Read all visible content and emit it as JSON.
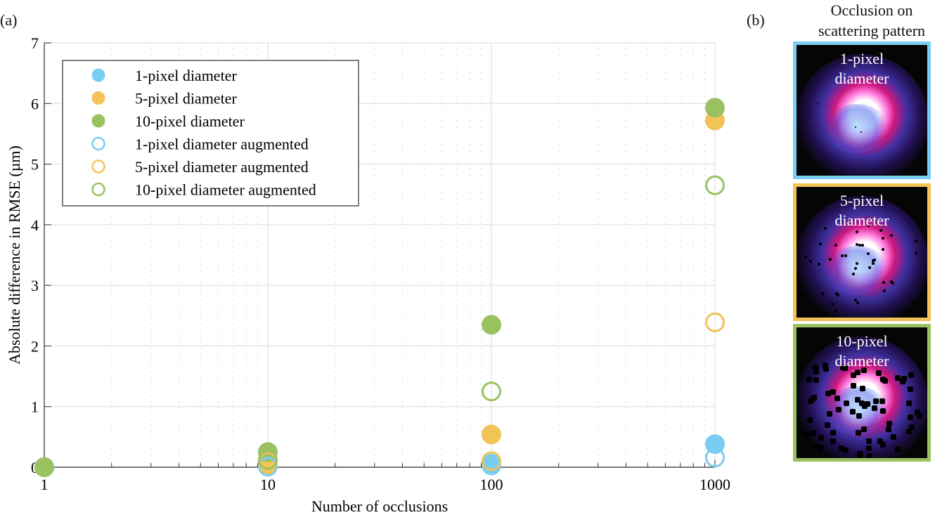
{
  "panels": {
    "a_label": "(a)",
    "b_label": "(b)"
  },
  "chart_data": {
    "type": "scatter",
    "title": "",
    "xlabel": "Number of occlusions",
    "ylabel": "Absolute difference in RMSE (µm)",
    "xscale": "log",
    "xlim": [
      1,
      1000
    ],
    "ylim": [
      0,
      7
    ],
    "xticks": [
      1,
      10,
      100,
      1000
    ],
    "xtick_labels": [
      "1",
      "10",
      "100",
      "1000"
    ],
    "yticks": [
      0,
      1,
      2,
      3,
      4,
      5,
      6,
      7
    ],
    "ytick_labels": [
      "0",
      "1",
      "2",
      "3",
      "4",
      "5",
      "6",
      "7"
    ],
    "grid": true,
    "minor_grid": "dotted",
    "legend_position": "top-left",
    "x": [
      1,
      10,
      100,
      1000
    ],
    "series": [
      {
        "name": "1-pixel diameter",
        "color": "#7acdf0",
        "filled": true,
        "values": [
          0,
          0.02,
          0.06,
          0.38
        ]
      },
      {
        "name": "5-pixel diameter",
        "color": "#f2c355",
        "filled": true,
        "values": [
          0,
          0.02,
          0.54,
          5.72
        ]
      },
      {
        "name": "10-pixel diameter",
        "color": "#99c15f",
        "filled": true,
        "values": [
          0,
          0.25,
          2.35,
          5.93
        ]
      },
      {
        "name": "1-pixel diameter augmented",
        "color": "#7acdf0",
        "filled": false,
        "values": [
          0,
          0.01,
          0.03,
          0.16
        ]
      },
      {
        "name": "5-pixel diameter augmented",
        "color": "#f2c355",
        "filled": false,
        "values": [
          0,
          0.09,
          0.1,
          2.39
        ]
      },
      {
        "name": "10-pixel diameter augmented",
        "color": "#99c15f",
        "filled": false,
        "values": [
          0,
          0.12,
          1.25,
          4.65
        ]
      }
    ]
  },
  "side_panel": {
    "title_line1": "Occlusion on",
    "title_line2": "scattering pattern",
    "images": [
      {
        "line1": "1-pixel",
        "line2": "diameter",
        "border_color": "#7acdf0",
        "occlusion_count": "few"
      },
      {
        "line1": "5-pixel",
        "line2": "diameter",
        "border_color": "#f2c355",
        "occlusion_count": "moderate"
      },
      {
        "line1": "10-pixel",
        "line2": "diameter",
        "border_color": "#99c15f",
        "occlusion_count": "many"
      }
    ]
  }
}
